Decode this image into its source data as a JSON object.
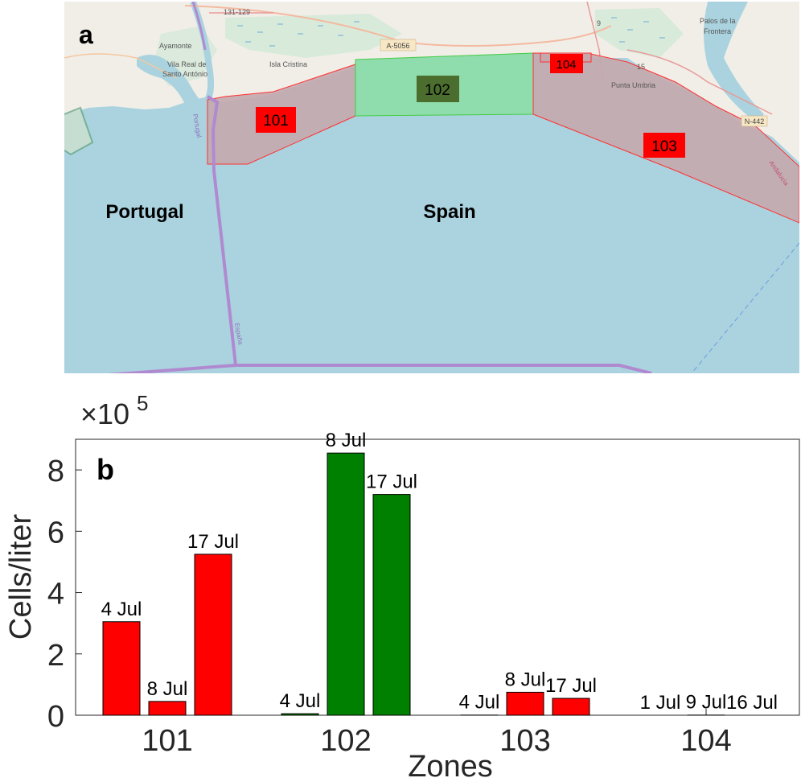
{
  "map": {
    "panel_label": "a",
    "country_labels": [
      "Portugal",
      "Spain"
    ],
    "places": [
      "Ayamonte",
      "Vila Real de",
      "Santo António",
      "Isla Cristina",
      "Palos de la",
      "Frontera",
      "Punta Umbria"
    ],
    "road_labels": [
      "A-5056",
      "N-442",
      "15",
      "131-129",
      "9"
    ],
    "border_labels": [
      "España",
      "Andalucía",
      "Portugal"
    ],
    "zones": [
      {
        "id": "101",
        "color": "#ff0000"
      },
      {
        "id": "102",
        "color": "#4b6e2e"
      },
      {
        "id": "103",
        "color": "#ff0000"
      },
      {
        "id": "104",
        "color": "#ff0000"
      }
    ],
    "colors": {
      "sea": "#aad3df",
      "land": "#f1eee8",
      "red_zone_fill": "#c4a8ae",
      "green_zone_fill": "#8fdcac"
    }
  },
  "chart": {
    "panel_label": "b",
    "exponent_label": "×10",
    "exponent_power": "5"
  },
  "chart_data": {
    "type": "bar",
    "title": "",
    "xlabel": "Zones",
    "ylabel": "Cells/liter",
    "y_scale_factor": 100000,
    "ylim": [
      0,
      9
    ],
    "yticks": [
      0,
      2,
      4,
      6,
      8
    ],
    "categories": [
      "101",
      "102",
      "103",
      "104"
    ],
    "bars": [
      {
        "zone": "101",
        "date": "4 Jul",
        "value": 3.05,
        "color": "#ff0000"
      },
      {
        "zone": "101",
        "date": "8 Jul",
        "value": 0.45,
        "color": "#ff0000"
      },
      {
        "zone": "101",
        "date": "17 Jul",
        "value": 5.25,
        "color": "#ff0000"
      },
      {
        "zone": "102",
        "date": "4 Jul",
        "value": 0.05,
        "color": "#008000"
      },
      {
        "zone": "102",
        "date": "8 Jul",
        "value": 8.55,
        "color": "#008000"
      },
      {
        "zone": "102",
        "date": "17 Jul",
        "value": 7.2,
        "color": "#008000"
      },
      {
        "zone": "103",
        "date": "4 Jul",
        "value": 0.01,
        "color": "#ff0000"
      },
      {
        "zone": "103",
        "date": "8 Jul",
        "value": 0.75,
        "color": "#ff0000"
      },
      {
        "zone": "103",
        "date": "17 Jul",
        "value": 0.55,
        "color": "#ff0000"
      },
      {
        "zone": "104",
        "date": "1 Jul",
        "value": 0.0,
        "color": "#ff0000"
      },
      {
        "zone": "104",
        "date": "9 Jul",
        "value": 0.01,
        "color": "#ff0000"
      },
      {
        "zone": "104",
        "date": "16 Jul",
        "value": 0.0,
        "color": "#ff0000"
      }
    ]
  }
}
